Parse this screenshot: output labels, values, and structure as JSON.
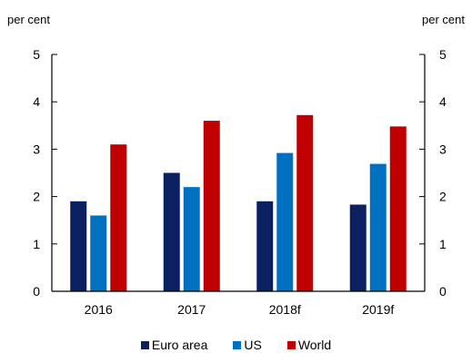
{
  "chart_data": {
    "type": "bar",
    "title": "",
    "ylabel_left": "per cent",
    "ylabel_right": "per cent",
    "categories": [
      "2016",
      "2017",
      "2018f",
      "2019f"
    ],
    "ylim": [
      0,
      5
    ],
    "yticks": [
      0,
      1,
      2,
      3,
      4,
      5
    ],
    "grid": false,
    "legend": "bottom",
    "series": [
      {
        "name": "Euro area",
        "color": "#0b2060",
        "values": [
          1.9,
          2.5,
          1.9,
          1.83
        ]
      },
      {
        "name": "US",
        "color": "#0070c0",
        "values": [
          1.6,
          2.2,
          2.92,
          2.69
        ]
      },
      {
        "name": "World",
        "color": "#c00000",
        "values": [
          3.1,
          3.6,
          3.72,
          3.48
        ]
      }
    ]
  }
}
